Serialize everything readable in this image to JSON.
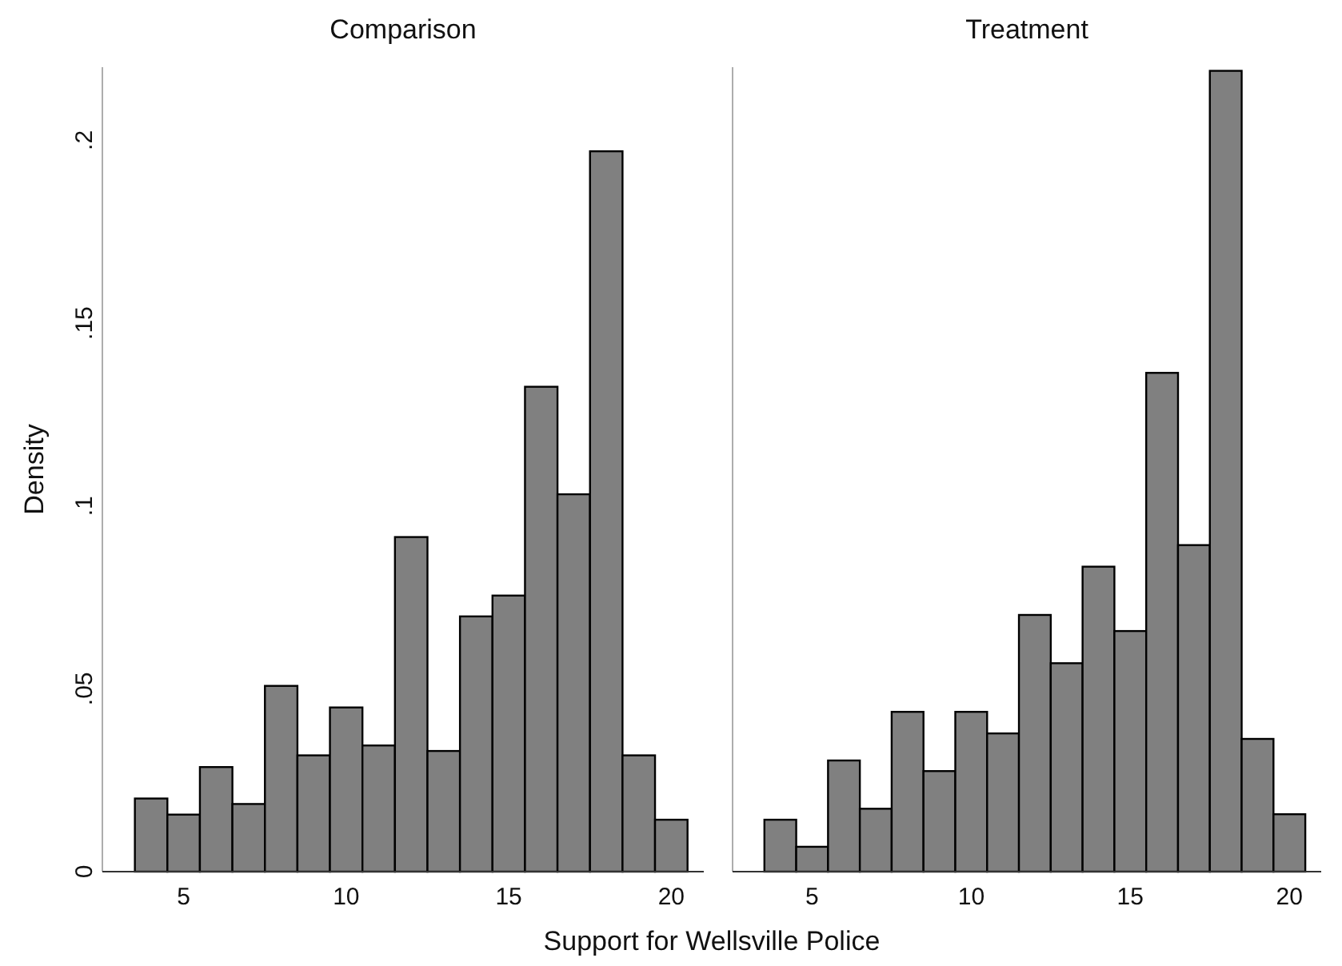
{
  "chart_data": [
    {
      "type": "histogram",
      "title": "Comparison",
      "xlabel": "Support for Wellsville Police",
      "ylabel": "Density",
      "color": "#808080",
      "bins": [
        3.5,
        4.5,
        5.5,
        6.5,
        7.5,
        8.5,
        9.5,
        10.5,
        11.5,
        12.5,
        13.5,
        14.5,
        15.5,
        16.5,
        17.5,
        18.5,
        19.5,
        20.5
      ],
      "values": [
        0.02,
        0.0156,
        0.0286,
        0.0185,
        0.0508,
        0.0318,
        0.0449,
        0.0345,
        0.0915,
        0.033,
        0.0698,
        0.0755,
        0.1326,
        0.1032,
        0.197,
        0.0318,
        0.0142
      ],
      "xlim": [
        2.5,
        21
      ],
      "xticks": [
        5,
        10,
        15,
        20
      ],
      "ylim": [
        0,
        0.22
      ],
      "yticks": [
        0,
        {
          "value": 0.05,
          "label": ".05"
        },
        {
          "value": 0.1,
          "label": ".1"
        },
        {
          "value": 0.15,
          "label": ".15"
        },
        {
          "value": 0.2,
          "label": ".2"
        }
      ]
    },
    {
      "type": "histogram",
      "title": "Treatment",
      "color": "#808080",
      "bins": [
        3.5,
        4.5,
        5.5,
        6.5,
        7.5,
        8.5,
        9.5,
        10.5,
        11.5,
        12.5,
        13.5,
        14.5,
        15.5,
        16.5,
        17.5,
        18.5,
        19.5,
        20.5
      ],
      "values": [
        0.0142,
        0.0068,
        0.0304,
        0.0172,
        0.0437,
        0.0275,
        0.0437,
        0.0378,
        0.0702,
        0.057,
        0.0834,
        0.0658,
        0.1364,
        0.0893,
        0.219,
        0.0363,
        0.0157
      ],
      "xlim": [
        2.5,
        21
      ],
      "xticks": [
        5,
        10,
        15,
        20
      ],
      "ylim": [
        0,
        0.22
      ],
      "tick_labels": "x"
    }
  ]
}
